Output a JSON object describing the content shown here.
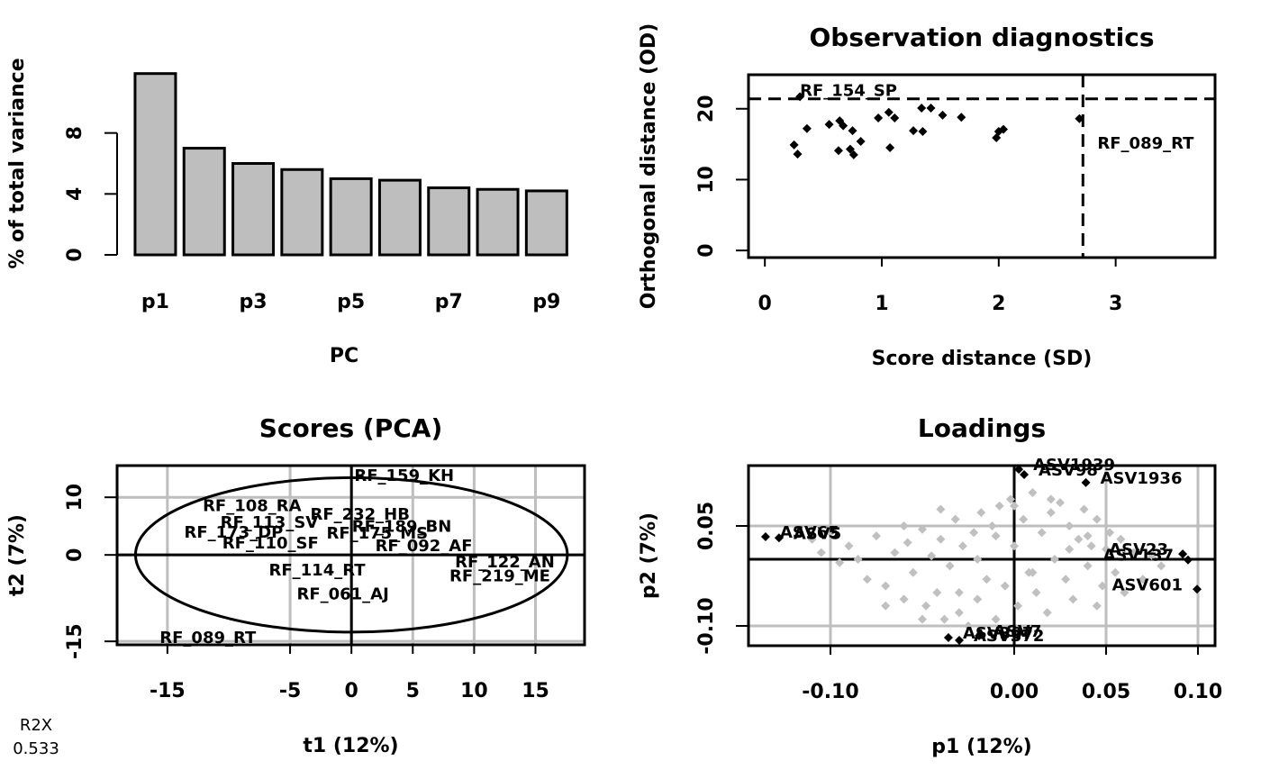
{
  "chart_data": [
    {
      "type": "bar",
      "categories": [
        "p1",
        null,
        "p3",
        null,
        "p5",
        null,
        "p7",
        null,
        "p9"
      ],
      "values": [
        11.9,
        7.0,
        6.0,
        5.6,
        5.0,
        4.9,
        4.4,
        4.3,
        4.2
      ],
      "color": "#bebebe",
      "ylabel": "% of total variance",
      "xlabel": "PC",
      "ylim": [
        0,
        12
      ],
      "yticks": [
        0,
        4,
        8
      ]
    },
    {
      "type": "scatter",
      "title": "Observation diagnostics",
      "xlabel": "Score distance (SD)",
      "ylabel": "Orthogonal distance (OD)",
      "xlim": [
        -0.14,
        3.85
      ],
      "ylim": [
        -1,
        24.8
      ],
      "xticks": [
        0,
        1,
        2,
        3
      ],
      "yticks": [
        0,
        10,
        20
      ],
      "color": "#000000",
      "x": [
        0.25,
        0.28,
        0.36,
        0.55,
        0.64,
        0.67,
        0.63,
        0.73,
        0.75,
        0.76,
        0.82,
        0.97,
        1.06,
        1.11,
        1.07,
        1.27,
        1.34,
        1.35,
        1.42,
        1.52,
        1.68,
        1.98,
        2.0,
        2.04,
        2.69,
        0.3
      ],
      "y": [
        14.9,
        13.6,
        17.2,
        17.8,
        18.3,
        17.6,
        14.1,
        14.3,
        16.9,
        13.5,
        15.4,
        18.7,
        19.5,
        18.7,
        14.5,
        16.9,
        20.1,
        16.8,
        20.1,
        19.1,
        18.8,
        15.9,
        16.8,
        17.1,
        18.6,
        21.7
      ],
      "point_labels": [
        null,
        null,
        null,
        null,
        null,
        null,
        null,
        null,
        null,
        null,
        null,
        null,
        null,
        null,
        null,
        null,
        null,
        null,
        null,
        null,
        null,
        null,
        null,
        null,
        "RF_089_RT",
        "RF_154_SP"
      ],
      "sd_threshold": 2.72,
      "od_threshold": 21.4
    },
    {
      "type": "scores",
      "title": "Scores (PCA)",
      "xlabel": "t1 (12%)",
      "ylabel": "t2 (7%)",
      "xlim": [
        -19.1,
        19.0
      ],
      "ylim": [
        -15.6,
        15.5
      ],
      "xticks": [
        -15,
        -5,
        0,
        5,
        10,
        15
      ],
      "yticks": [
        -15,
        0,
        10
      ],
      "grid": true,
      "ellipse": [
        17.6,
        13.4
      ],
      "point_labels": [
        "RF_159_KH",
        "RF_108_RA",
        "RF_232_HB",
        "RF_113_SV",
        "RF_189_BN",
        "RF_173_DP",
        "RF_175_MS",
        "RF_110_SF",
        "RF_092_AF",
        "RF_114_RT",
        "RF_122_AN",
        "RF_219_ME",
        "RF_061_AJ",
        "RF_089_RT"
      ],
      "x": [
        4.3,
        -8.1,
        0.7,
        -6.7,
        4.1,
        -9.6,
        2.1,
        -6.6,
        5.9,
        -2.8,
        12.5,
        12.1,
        -0.7,
        -11.7
      ],
      "y": [
        13.6,
        8.4,
        6.9,
        5.5,
        4.8,
        3.8,
        3.6,
        1.9,
        1.4,
        -2.8,
        -1.4,
        -3.8,
        -6.9,
        -14.5
      ]
    },
    {
      "type": "loadings",
      "title": "Loadings",
      "xlabel": "p1 (12%)",
      "ylabel": "p2 (7%)",
      "xlim": [
        -0.1446,
        0.1093
      ],
      "ylim": [
        -0.1297,
        0.1405
      ],
      "xticks": [
        {
          "value": -0.1,
          "label": "-0.10"
        },
        {
          "value": 0,
          "label": "0.00"
        },
        {
          "value": 0.05,
          "label": "0.05"
        },
        {
          "value": 0.1,
          "label": "0.10"
        }
      ],
      "yticks": [
        {
          "value": -0.1,
          "label": "-0.10"
        },
        {
          "value": 0.05,
          "label": "0.05"
        }
      ],
      "grid": true,
      "series": [
        {
          "name": "other",
          "color": "#c0c0c0",
          "x": [
            -0.11,
            -0.105,
            -0.1,
            -0.095,
            -0.09,
            -0.085,
            -0.08,
            -0.075,
            -0.07,
            -0.065,
            -0.06,
            -0.058,
            -0.055,
            -0.05,
            -0.048,
            -0.045,
            -0.042,
            -0.04,
            -0.038,
            -0.035,
            -0.032,
            -0.03,
            -0.028,
            -0.025,
            -0.022,
            -0.02,
            -0.018,
            -0.015,
            -0.012,
            -0.01,
            -0.008,
            -0.005,
            -0.002,
            0.0,
            0.002,
            0.005,
            0.008,
            0.01,
            0.012,
            0.015,
            0.018,
            0.02,
            0.022,
            0.025,
            0.028,
            0.03,
            0.032,
            0.035,
            0.038,
            0.04,
            0.042,
            0.045,
            0.048,
            0.05,
            0.052,
            0.055,
            0.058,
            0.06,
            0.065,
            0.07,
            0.075,
            0.08,
            -0.07,
            -0.05,
            -0.03,
            -0.01,
            0.01,
            0.03,
            0.045,
            -0.06,
            -0.02,
            0.0,
            0.02,
            0.04,
            -0.04
          ],
          "y": [
            0.03,
            0.01,
            0.04,
            -0.005,
            0.02,
            0.0,
            -0.03,
            0.035,
            -0.04,
            0.01,
            -0.06,
            0.025,
            -0.02,
            0.045,
            -0.07,
            0.005,
            -0.05,
            0.03,
            -0.09,
            -0.01,
            0.06,
            -0.08,
            0.02,
            -0.1,
            0.04,
            -0.06,
            0.07,
            -0.03,
            0.05,
            -0.09,
            0.08,
            -0.04,
            0.09,
            0.02,
            -0.07,
            0.06,
            -0.02,
            0.1,
            -0.05,
            0.04,
            -0.08,
            0.07,
            0.0,
            0.085,
            -0.03,
            0.05,
            -0.06,
            0.03,
            0.075,
            -0.01,
            0.02,
            0.06,
            -0.04,
            0.015,
            0.04,
            -0.02,
            0.03,
            -0.05,
            0.01,
            -0.03,
            0.005,
            -0.01,
            -0.07,
            -0.09,
            -0.05,
            0.035,
            -0.02,
            0.015,
            -0.07,
            0.05,
            0.0,
            0.08,
            0.09,
            0.035,
            0.075
          ]
        },
        {
          "name": "highlighted",
          "color": "#000000",
          "x": [
            -0.1353,
            -0.128,
            0.0917,
            0.0946,
            0.0995,
            0.0025,
            0.0054,
            0.039,
            -0.0358,
            -0.0299,
            -0.0191
          ],
          "y": [
            0.0338,
            0.032,
            0.008,
            -0.001,
            -0.045,
            0.135,
            0.127,
            0.115,
            -0.1176,
            -0.1216,
            -0.1149
          ],
          "point_labels": [
            "ASV65",
            "ASV5",
            "ASV23",
            "ASV137",
            "ASV601",
            "ASV1939",
            "ASV98",
            "ASV1936",
            "ASV307",
            "ASV372",
            "ASV7"
          ]
        }
      ]
    }
  ],
  "footer": {
    "labels": [
      "R2X"
    ],
    "values": [
      0.533
    ]
  }
}
